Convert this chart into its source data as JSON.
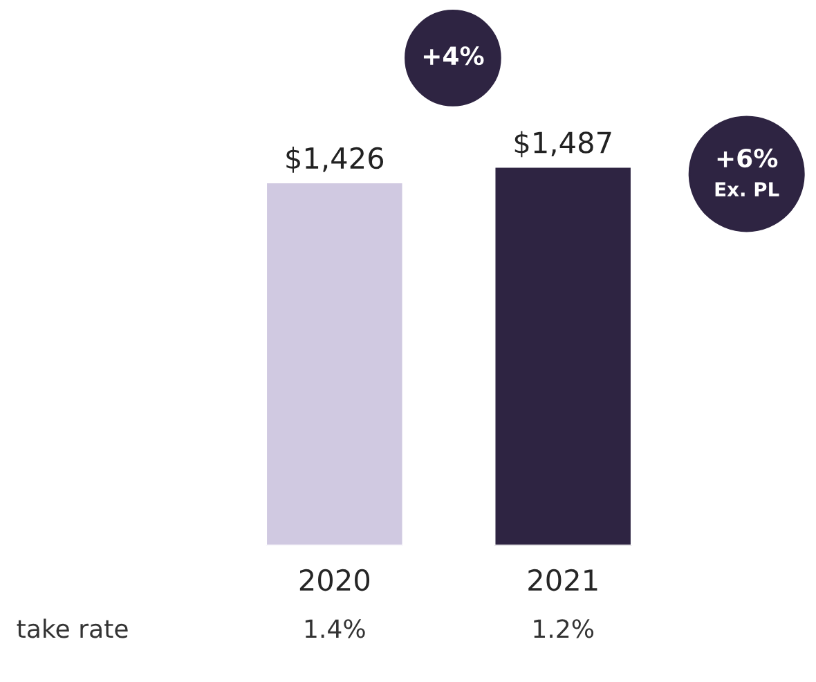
{
  "chart_data": {
    "type": "bar",
    "categories": [
      "2020",
      "2021"
    ],
    "values": [
      1426,
      1487
    ],
    "colors": [
      "#d0c9e1",
      "#2e2442"
    ],
    "value_labels": [
      "$1,426",
      "$1,487"
    ],
    "annotations": [
      "+4%",
      "+6%",
      "Ex. PL",
      "take rate",
      "1.4%",
      "1.2%"
    ]
  }
}
